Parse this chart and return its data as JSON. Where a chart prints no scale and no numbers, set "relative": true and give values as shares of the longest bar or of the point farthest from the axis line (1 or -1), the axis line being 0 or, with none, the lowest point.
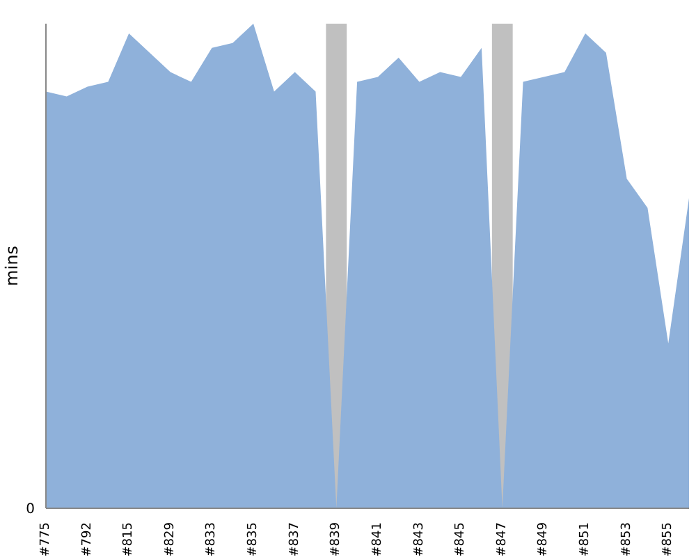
{
  "chart_data": {
    "type": "area",
    "ylabel": "mins",
    "relative": true,
    "annotations": [
      "0"
    ],
    "categories": [
      "#775",
      null,
      "#792",
      null,
      "#815",
      null,
      "#829",
      null,
      "#833",
      null,
      "#835",
      null,
      "#837",
      null,
      "#839",
      null,
      "#841",
      null,
      "#843",
      null,
      "#845",
      null,
      "#847",
      null,
      "#849",
      null,
      "#851",
      null,
      "#853",
      null,
      "#855",
      null
    ],
    "series": [
      {
        "color": "#8fb1da",
        "values": [
          0.86,
          0.85,
          0.87,
          0.88,
          0.98,
          0.94,
          0.9,
          0.88,
          0.95,
          0.96,
          1,
          0.86,
          0.9,
          0.86,
          0,
          0.88,
          0.89,
          0.93,
          0.88,
          0.9,
          0.89,
          0.95,
          0,
          0.88,
          0.89,
          0.9,
          0.98,
          0.94,
          0.68,
          0.62,
          0.34,
          0.64
        ]
      }
    ],
    "bands": [
      {
        "axis": "x",
        "from": "#839",
        "to": "#839",
        "color": "#c0c0c0"
      },
      {
        "axis": "x",
        "from": "#847",
        "to": "#847",
        "color": "#c0c0c0"
      }
    ],
    "grid": false,
    "legend": false
  }
}
